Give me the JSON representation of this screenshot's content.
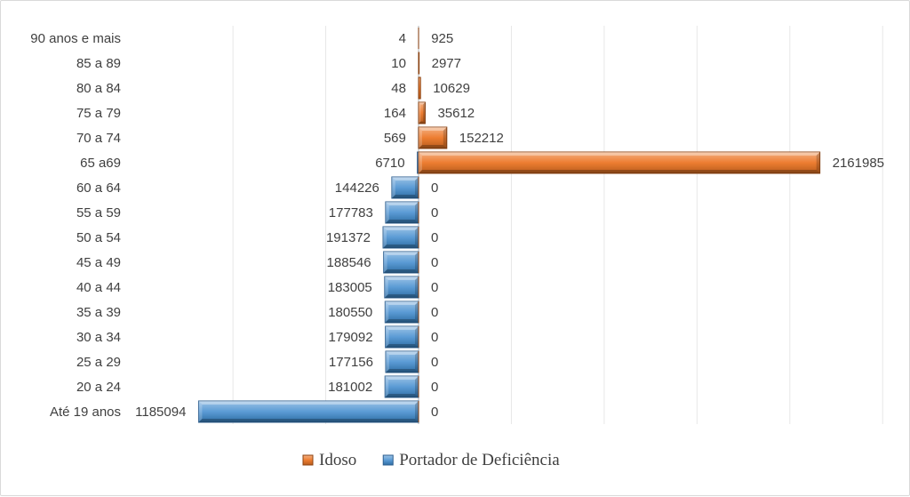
{
  "chart_data": {
    "type": "bar",
    "orientation": "horizontal",
    "layout": "diverging-population-pyramid",
    "categories": [
      "Até 19 anos",
      "20 a 24",
      "25 a 29",
      "30 a 34",
      "35 a 39",
      "40 a 44",
      "45 a 49",
      "50 a 54",
      "55 a 59",
      "60 a 64",
      "65 a69",
      "70 a 74",
      "75 a 79",
      "80 a 84",
      "85 a 89",
      "90 anos e mais"
    ],
    "series": [
      {
        "name": "Idoso",
        "side": "right",
        "color": "#ed7d31",
        "values": [
          0,
          0,
          0,
          0,
          0,
          0,
          0,
          0,
          0,
          0,
          2161985,
          152212,
          35612,
          10629,
          2977,
          925
        ]
      },
      {
        "name": "Portador de Deficiência",
        "side": "left",
        "color": "#5b9bd5",
        "values": [
          1185094,
          181002,
          177156,
          179092,
          180550,
          183005,
          188546,
          191372,
          177783,
          144226,
          6710,
          569,
          164,
          48,
          10,
          4
        ]
      }
    ],
    "xlim": [
      -1250000,
      2500000
    ],
    "grid": true,
    "legend_position": "bottom"
  }
}
